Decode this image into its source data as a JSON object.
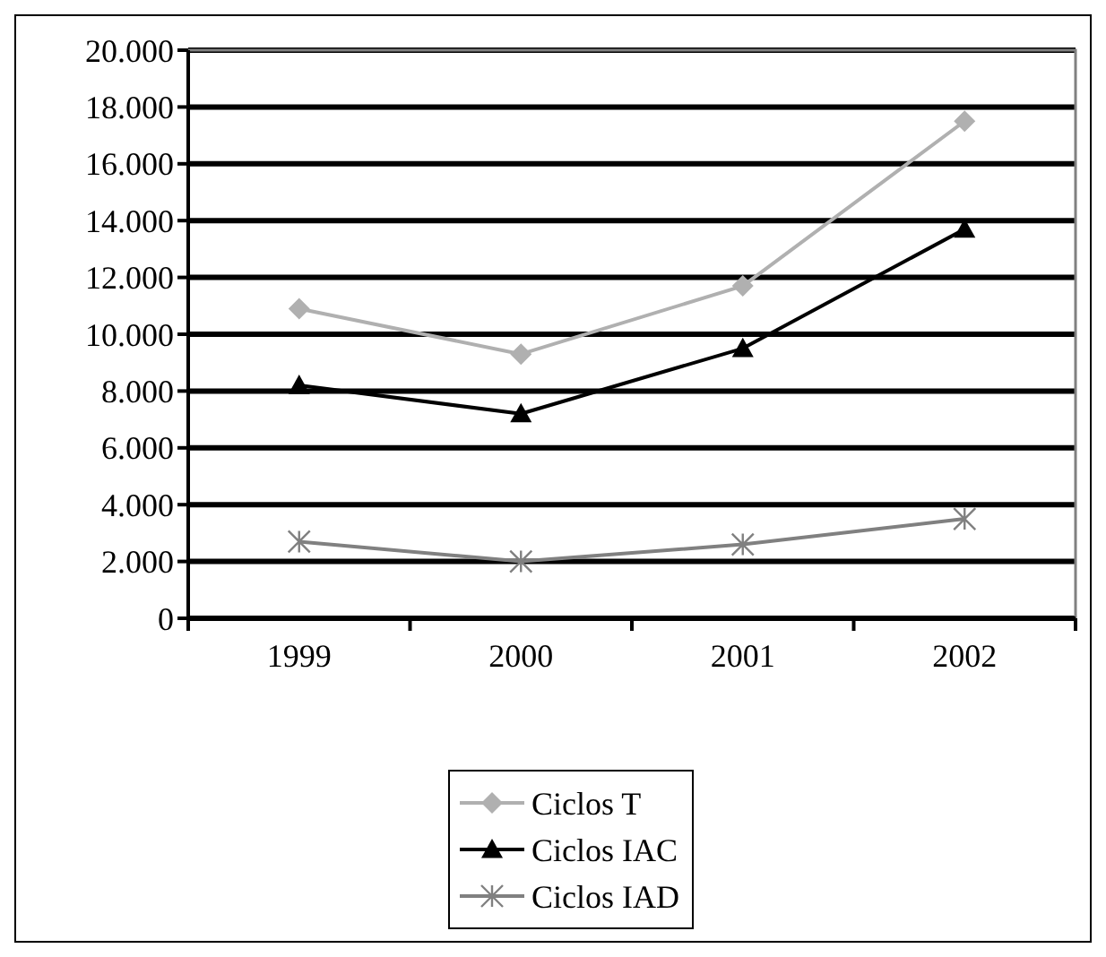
{
  "chart_data": {
    "type": "line",
    "categories": [
      "1999",
      "2000",
      "2001",
      "2002"
    ],
    "series": [
      {
        "name": "Ciclos T",
        "color": "#b0b0b0",
        "marker": "diamond",
        "values": [
          10900,
          9300,
          11700,
          17500
        ]
      },
      {
        "name": "Ciclos IAC",
        "color": "#000000",
        "marker": "triangle",
        "values": [
          8200,
          7200,
          9500,
          13700
        ]
      },
      {
        "name": "Ciclos IAD",
        "color": "#808080",
        "marker": "cross",
        "values": [
          2700,
          2000,
          2600,
          3500
        ]
      }
    ],
    "ylim": [
      0,
      20000
    ],
    "yticks": [
      {
        "value": 0,
        "label": "0"
      },
      {
        "value": 2000,
        "label": "2.000"
      },
      {
        "value": 4000,
        "label": "4.000"
      },
      {
        "value": 6000,
        "label": "6.000"
      },
      {
        "value": 8000,
        "label": "8.000"
      },
      {
        "value": 10000,
        "label": "10.000"
      },
      {
        "value": 12000,
        "label": "12.000"
      },
      {
        "value": 14000,
        "label": "14.000"
      },
      {
        "value": 16000,
        "label": "16.000"
      },
      {
        "value": 18000,
        "label": "18.000"
      },
      {
        "value": 20000,
        "label": "20.000"
      }
    ],
    "grid": "y",
    "legend": "bottom"
  }
}
